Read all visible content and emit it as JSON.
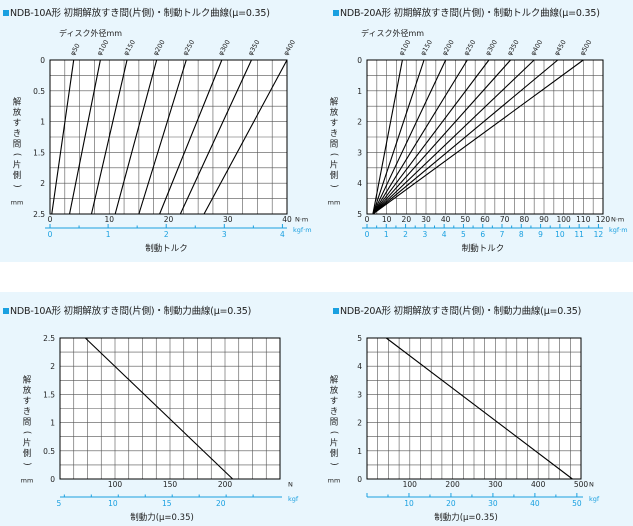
{
  "colors": {
    "background": "#e9f6fd",
    "title_marker": "#1aa0e0",
    "secondary_axis": "#1aa0e0",
    "plot_line": "#000000"
  },
  "chart_data": [
    {
      "type": "line",
      "title": "NDB-10A形 初期解放すき間(片側)・制動トルク曲線(μ=0.35)",
      "top_label": "ディスク外径mm",
      "xlabel": "制動トルク",
      "ylabel": "解放すき間(片側)",
      "yunit": "mm",
      "x_unit": "N·m",
      "x2_unit": "kgf·m",
      "xlim": [
        0,
        40
      ],
      "ylim": [
        2.5,
        0
      ],
      "x_ticks": [
        0,
        10,
        20,
        30,
        40
      ],
      "x_tick_labels": [
        "0",
        "10",
        "20",
        "30",
        "40"
      ],
      "x_minor_step": 2.5,
      "x2_ticks": [
        0,
        1,
        2,
        3,
        4
      ],
      "x2_tick_labels": [
        "0",
        "1",
        "2",
        "3",
        "4"
      ],
      "x2_scale": 9.80665,
      "y_ticks": [
        0,
        0.5,
        1,
        1.5,
        2,
        2.5
      ],
      "y_tick_labels": [
        "0",
        "0.5",
        "1",
        "1.5",
        "2",
        "2.5"
      ],
      "y_minor_step": 0.25,
      "grid": true,
      "series": [
        {
          "name": "φ50",
          "points": [
            [
              4,
              0
            ],
            [
              0.3,
              2.5
            ]
          ]
        },
        {
          "name": "φ100",
          "points": [
            [
              8.5,
              0
            ],
            [
              3.3,
              2.5
            ]
          ]
        },
        {
          "name": "φ150",
          "points": [
            [
              13,
              0
            ],
            [
              7,
              2.5
            ]
          ]
        },
        {
          "name": "φ200",
          "points": [
            [
              18,
              0
            ],
            [
              11,
              2.5
            ]
          ]
        },
        {
          "name": "φ250",
          "points": [
            [
              23,
              0
            ],
            [
              15,
              2.5
            ]
          ]
        },
        {
          "name": "φ300",
          "points": [
            [
              29,
              0
            ],
            [
              18.5,
              2.5
            ]
          ]
        },
        {
          "name": "φ350",
          "points": [
            [
              34,
              0
            ],
            [
              22,
              2.5
            ]
          ]
        },
        {
          "name": "φ400",
          "points": [
            [
              40,
              0
            ],
            [
              26,
              2.5
            ]
          ]
        }
      ]
    },
    {
      "type": "line",
      "title": "NDB-20A形 初期解放すき間(片側)・制動トルク曲線(μ=0.35)",
      "top_label": "ディスク外径mm",
      "xlabel": "制動トルク",
      "ylabel": "解放すき間(片側)",
      "yunit": "mm",
      "x_unit": "N·m",
      "x2_unit": "kgf·m",
      "xlim": [
        0,
        120
      ],
      "ylim": [
        5,
        0
      ],
      "x_ticks": [
        0,
        10,
        20,
        30,
        40,
        50,
        60,
        70,
        80,
        90,
        100,
        110,
        120
      ],
      "x_tick_labels": [
        "0",
        "10",
        "20",
        "30",
        "40",
        "50",
        "60",
        "70",
        "80",
        "90",
        "100",
        "110",
        "120"
      ],
      "x_minor_step": 5,
      "x2_ticks": [
        0,
        1,
        2,
        3,
        4,
        5,
        6,
        7,
        8,
        9,
        10,
        11,
        12
      ],
      "x2_tick_labels": [
        "0",
        "1",
        "2",
        "3",
        "4",
        "5",
        "6",
        "7",
        "8",
        "9",
        "10",
        "11",
        "12"
      ],
      "x2_scale": 9.80665,
      "y_ticks": [
        0,
        1,
        2,
        3,
        4,
        5
      ],
      "y_tick_labels": [
        "0",
        "1",
        "2",
        "3",
        "4",
        "5"
      ],
      "y_minor_step": 0.5,
      "grid": true,
      "series": [
        {
          "name": "φ100",
          "points": [
            [
              18,
              0
            ],
            [
              3,
              5
            ]
          ]
        },
        {
          "name": "φ150",
          "points": [
            [
              29,
              0
            ],
            [
              3,
              5
            ]
          ]
        },
        {
          "name": "φ200",
          "points": [
            [
              40,
              0
            ],
            [
              3,
              5
            ]
          ]
        },
        {
          "name": "φ250",
          "points": [
            [
              51,
              0
            ],
            [
              3,
              5
            ]
          ]
        },
        {
          "name": "φ300",
          "points": [
            [
              62,
              0
            ],
            [
              3,
              5
            ]
          ]
        },
        {
          "name": "φ350",
          "points": [
            [
              73,
              0
            ],
            [
              3,
              5
            ]
          ]
        },
        {
          "name": "φ400",
          "points": [
            [
              85,
              0
            ],
            [
              3,
              5
            ]
          ]
        },
        {
          "name": "φ450",
          "points": [
            [
              97,
              0
            ],
            [
              3,
              5
            ]
          ]
        },
        {
          "name": "φ500",
          "points": [
            [
              110,
              0
            ],
            [
              3,
              5
            ]
          ]
        }
      ]
    },
    {
      "type": "line",
      "title": "NDB-10A形 初期解放すき間(片側)・制動力曲線(μ=0.35)",
      "xlabel": "制動力(μ=0.35)",
      "ylabel": "解放すき間(片側)",
      "yunit": "mm",
      "x_unit": "N",
      "x2_unit": "kgf",
      "xlim": [
        50,
        250
      ],
      "ylim": [
        0,
        2.5
      ],
      "x_ticks": [
        100,
        150,
        200
      ],
      "x_tick_labels": [
        "100",
        "150",
        "200"
      ],
      "x_minor_step": 12.5,
      "x2_ticks": [
        5,
        10,
        15,
        20
      ],
      "x2_tick_labels": [
        "5",
        "10",
        "15",
        "20"
      ],
      "x2_scale": 9.80665,
      "y_ticks": [
        0,
        0.5,
        1,
        1.5,
        2,
        2.5
      ],
      "y_tick_labels": [
        "0",
        "0.5",
        "1",
        "1.5",
        "2",
        "2.5"
      ],
      "y_minor_step": 0.25,
      "grid": true,
      "series": [
        {
          "name": "",
          "points": [
            [
              73,
              2.5
            ],
            [
              207,
              0
            ]
          ]
        }
      ]
    },
    {
      "type": "line",
      "title": "NDB-20A形 初期解放すき間(片側)・制動力曲線(μ=0.35)",
      "xlabel": "制動力(μ=0.35)",
      "ylabel": "解放すき間(片側)",
      "yunit": "mm",
      "x_unit": "N",
      "x2_unit": "kgf",
      "xlim": [
        0,
        500
      ],
      "ylim": [
        0,
        5
      ],
      "x_ticks": [
        100,
        200,
        300,
        400,
        500
      ],
      "x_tick_labels": [
        "100",
        "200",
        "300",
        "400",
        "500"
      ],
      "x_minor_step": 25,
      "x2_ticks": [
        10,
        20,
        30,
        40,
        50
      ],
      "x2_tick_labels": [
        "10",
        "20",
        "30",
        "40",
        "50"
      ],
      "x2_scale": 9.80665,
      "y_ticks": [
        0,
        1,
        2,
        3,
        4,
        5
      ],
      "y_tick_labels": [
        "0",
        "1",
        "2",
        "3",
        "4",
        "5"
      ],
      "y_minor_step": 0.5,
      "grid": true,
      "series": [
        {
          "name": "",
          "points": [
            [
              45,
              5
            ],
            [
              480,
              0
            ]
          ]
        }
      ]
    }
  ]
}
